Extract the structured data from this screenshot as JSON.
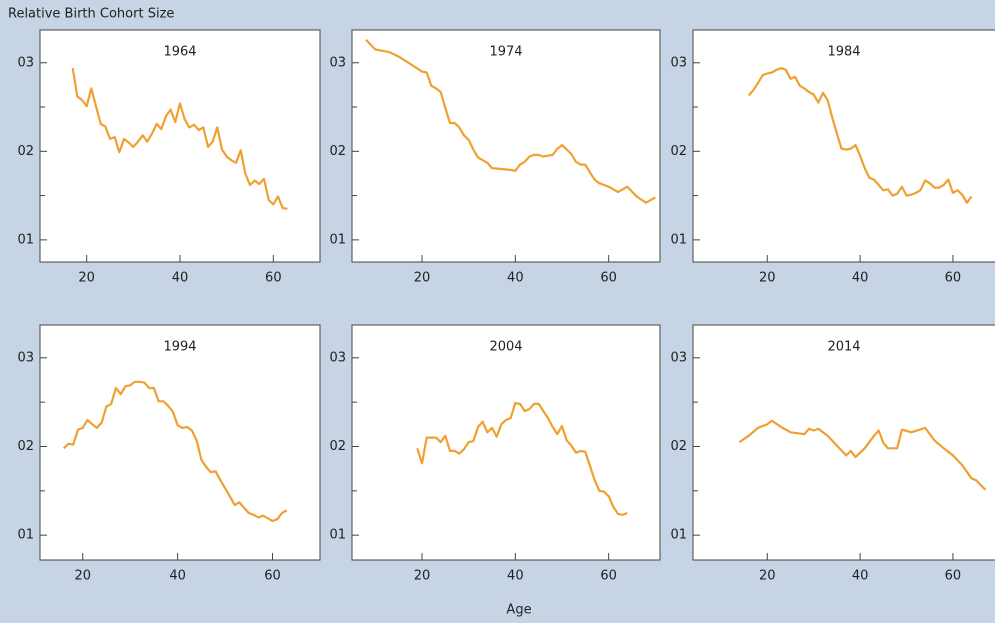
{
  "title": "Relative Birth Cohort Size",
  "xlabel": "Age",
  "chart_data": [
    {
      "type": "line",
      "title": "1964",
      "xlim": [
        10,
        70
      ],
      "ylim": [
        0.075,
        0.337
      ],
      "xticks": [
        20,
        40,
        60
      ],
      "yticks": [
        {
          "value": 0.1,
          "label": "01"
        },
        {
          "value": 0.2,
          "label": "02"
        },
        {
          "value": 0.3,
          "label": "03"
        }
      ],
      "yminor_ticks": [
        0.15,
        0.25
      ],
      "x": [
        17,
        18,
        19,
        20,
        21,
        22,
        23,
        24,
        25,
        26,
        27,
        28,
        29,
        30,
        31,
        32,
        33,
        34,
        35,
        36,
        37,
        38,
        39,
        40,
        41,
        42,
        43,
        44,
        45,
        46,
        47,
        48,
        49,
        50,
        51,
        52,
        53,
        54,
        55,
        56,
        57,
        58,
        59,
        60,
        61,
        62,
        63
      ],
      "series": [
        {
          "color": "#f0a030",
          "values": [
            0.294,
            0.262,
            0.258,
            0.251,
            0.271,
            0.251,
            0.231,
            0.228,
            0.214,
            0.216,
            0.199,
            0.214,
            0.21,
            0.205,
            0.211,
            0.218,
            0.211,
            0.22,
            0.231,
            0.225,
            0.24,
            0.247,
            0.233,
            0.254,
            0.236,
            0.227,
            0.23,
            0.224,
            0.227,
            0.205,
            0.211,
            0.227,
            0.202,
            0.194,
            0.19,
            0.187,
            0.201,
            0.175,
            0.162,
            0.167,
            0.163,
            0.169,
            0.145,
            0.14,
            0.149,
            0.136,
            0.135
          ]
        }
      ]
    },
    {
      "type": "line",
      "title": "1974",
      "xlim": [
        5,
        71
      ],
      "ylim": [
        0.075,
        0.337
      ],
      "xticks": [
        20,
        40,
        60
      ],
      "yticks": [
        {
          "value": 0.1,
          "label": "01"
        },
        {
          "value": 0.2,
          "label": "02"
        },
        {
          "value": 0.3,
          "label": "03"
        }
      ],
      "yminor_ticks": [
        0.15,
        0.25
      ],
      "x": [
        8,
        10,
        13,
        15,
        18,
        20,
        21,
        22,
        23,
        24,
        25,
        26,
        27,
        28,
        29,
        30,
        31,
        32,
        33,
        34,
        35,
        37,
        39,
        40,
        41,
        42,
        43,
        44,
        45,
        46,
        47,
        48,
        49,
        50,
        51,
        52,
        53,
        54,
        55,
        56,
        57,
        58,
        59,
        60,
        62,
        64,
        66,
        68,
        70
      ],
      "series": [
        {
          "color": "#f0a030",
          "values": [
            0.326,
            0.315,
            0.312,
            0.307,
            0.297,
            0.29,
            0.289,
            0.274,
            0.271,
            0.267,
            0.249,
            0.232,
            0.232,
            0.227,
            0.218,
            0.213,
            0.202,
            0.193,
            0.19,
            0.187,
            0.181,
            0.18,
            0.179,
            0.178,
            0.185,
            0.188,
            0.194,
            0.196,
            0.196,
            0.194,
            0.195,
            0.196,
            0.203,
            0.207,
            0.202,
            0.197,
            0.188,
            0.185,
            0.185,
            0.176,
            0.168,
            0.164,
            0.162,
            0.16,
            0.154,
            0.16,
            0.149,
            0.142,
            0.148
          ]
        }
      ]
    },
    {
      "type": "line",
      "title": "1984",
      "xlim": [
        4,
        71
      ],
      "ylim": [
        0.075,
        0.337
      ],
      "xticks": [
        20,
        40,
        60
      ],
      "yticks": [
        {
          "value": 0.1,
          "label": "01"
        },
        {
          "value": 0.2,
          "label": "02"
        },
        {
          "value": 0.3,
          "label": "03"
        }
      ],
      "yminor_ticks": [
        0.15,
        0.25
      ],
      "x": [
        16,
        17,
        18,
        19,
        20,
        21,
        22,
        23,
        24,
        25,
        26,
        27,
        28,
        29,
        30,
        31,
        32,
        33,
        34,
        35,
        36,
        37,
        38,
        39,
        40,
        41,
        42,
        43,
        44,
        45,
        46,
        47,
        48,
        49,
        50,
        51,
        52,
        53,
        54,
        55,
        56,
        57,
        58,
        59,
        60,
        61,
        62,
        63,
        64
      ],
      "series": [
        {
          "color": "#f0a030",
          "values": [
            0.263,
            0.269,
            0.277,
            0.286,
            0.288,
            0.289,
            0.292,
            0.294,
            0.292,
            0.282,
            0.284,
            0.274,
            0.271,
            0.267,
            0.264,
            0.255,
            0.266,
            0.258,
            0.238,
            0.22,
            0.203,
            0.202,
            0.203,
            0.207,
            0.195,
            0.181,
            0.17,
            0.168,
            0.162,
            0.156,
            0.157,
            0.15,
            0.152,
            0.16,
            0.15,
            0.151,
            0.153,
            0.156,
            0.167,
            0.164,
            0.159,
            0.159,
            0.162,
            0.168,
            0.153,
            0.156,
            0.151,
            0.142,
            0.149
          ]
        }
      ]
    },
    {
      "type": "line",
      "title": "1994",
      "xlim": [
        11,
        70
      ],
      "ylim": [
        0.072,
        0.337
      ],
      "xticks": [
        20,
        40,
        60
      ],
      "yticks": [
        {
          "value": 0.1,
          "label": "01"
        },
        {
          "value": 0.2,
          "label": "02"
        },
        {
          "value": 0.3,
          "label": "03"
        }
      ],
      "yminor_ticks": [
        0.15,
        0.25
      ],
      "x": [
        16,
        17,
        18,
        19,
        20,
        21,
        22,
        23,
        24,
        25,
        26,
        27,
        28,
        29,
        30,
        31,
        32,
        33,
        34,
        35,
        36,
        37,
        38,
        39,
        40,
        41,
        42,
        43,
        44,
        45,
        46,
        47,
        48,
        49,
        50,
        51,
        52,
        53,
        54,
        55,
        56,
        57,
        58,
        59,
        60,
        61,
        62,
        63
      ],
      "series": [
        {
          "color": "#f0a030",
          "values": [
            0.198,
            0.203,
            0.202,
            0.219,
            0.221,
            0.23,
            0.225,
            0.221,
            0.227,
            0.245,
            0.248,
            0.266,
            0.259,
            0.268,
            0.269,
            0.273,
            0.273,
            0.272,
            0.266,
            0.266,
            0.251,
            0.251,
            0.246,
            0.239,
            0.224,
            0.221,
            0.222,
            0.218,
            0.207,
            0.185,
            0.177,
            0.171,
            0.172,
            0.162,
            0.153,
            0.144,
            0.134,
            0.137,
            0.131,
            0.125,
            0.123,
            0.12,
            0.122,
            0.119,
            0.116,
            0.118,
            0.125,
            0.128
          ]
        }
      ]
    },
    {
      "type": "line",
      "title": "2004",
      "xlim": [
        5,
        71
      ],
      "ylim": [
        0.072,
        0.337
      ],
      "xticks": [
        20,
        40,
        60
      ],
      "yticks": [
        {
          "value": 0.1,
          "label": "01"
        },
        {
          "value": 0.2,
          "label": "02"
        },
        {
          "value": 0.3,
          "label": "03"
        }
      ],
      "yminor_ticks": [
        0.15,
        0.25
      ],
      "x": [
        19,
        20,
        21,
        22,
        23,
        24,
        25,
        26,
        27,
        28,
        29,
        30,
        31,
        32,
        33,
        34,
        35,
        36,
        37,
        38,
        39,
        40,
        41,
        42,
        43,
        44,
        45,
        46,
        47,
        48,
        49,
        50,
        51,
        52,
        53,
        54,
        55,
        56,
        57,
        58,
        59,
        60,
        61,
        62,
        63,
        64
      ],
      "series": [
        {
          "color": "#f0a030",
          "values": [
            0.198,
            0.181,
            0.21,
            0.21,
            0.21,
            0.205,
            0.212,
            0.195,
            0.195,
            0.192,
            0.197,
            0.205,
            0.206,
            0.222,
            0.228,
            0.216,
            0.221,
            0.211,
            0.225,
            0.23,
            0.232,
            0.249,
            0.248,
            0.24,
            0.242,
            0.248,
            0.248,
            0.24,
            0.232,
            0.222,
            0.214,
            0.223,
            0.207,
            0.201,
            0.193,
            0.195,
            0.194,
            0.178,
            0.162,
            0.15,
            0.149,
            0.144,
            0.132,
            0.124,
            0.123,
            0.125
          ]
        }
      ]
    },
    {
      "type": "line",
      "title": "2014",
      "xlim": [
        4,
        71
      ],
      "ylim": [
        0.072,
        0.337
      ],
      "xticks": [
        20,
        40,
        60
      ],
      "yticks": [
        {
          "value": 0.1,
          "label": "01"
        },
        {
          "value": 0.2,
          "label": "02"
        },
        {
          "value": 0.3,
          "label": "03"
        }
      ],
      "yminor_ticks": [
        0.15,
        0.25
      ],
      "x": [
        14,
        16,
        18,
        20,
        21,
        23,
        25,
        28,
        29,
        30,
        31,
        33,
        35,
        37,
        38,
        39,
        41,
        43,
        44,
        45,
        46,
        48,
        49,
        51,
        54,
        56,
        58,
        60,
        62,
        64,
        65,
        67
      ],
      "series": [
        {
          "color": "#f0a030",
          "values": [
            0.205,
            0.212,
            0.221,
            0.225,
            0.229,
            0.222,
            0.216,
            0.214,
            0.22,
            0.218,
            0.22,
            0.212,
            0.201,
            0.19,
            0.195,
            0.188,
            0.198,
            0.212,
            0.218,
            0.204,
            0.198,
            0.198,
            0.219,
            0.216,
            0.221,
            0.207,
            0.198,
            0.19,
            0.179,
            0.164,
            0.162,
            0.151
          ]
        }
      ]
    }
  ]
}
